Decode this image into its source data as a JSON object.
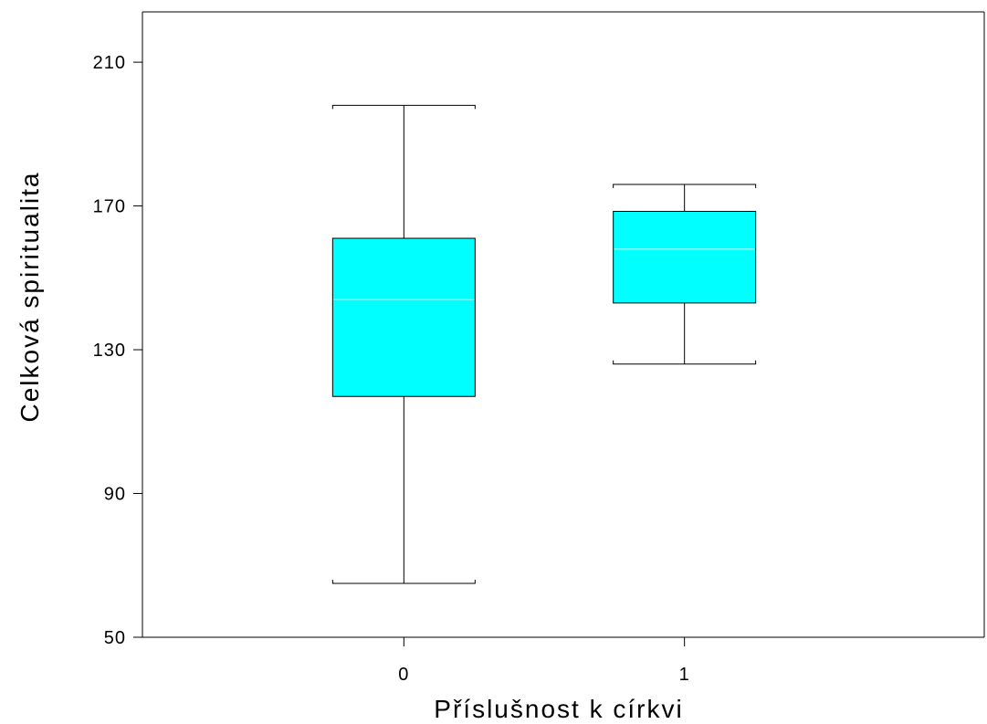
{
  "chart_data": {
    "type": "box",
    "xlabel": "Příslušnost k církvi",
    "ylabel": "Celková spiritualita",
    "ylim": [
      50,
      224
    ],
    "yticks": [
      50,
      90,
      130,
      170,
      210
    ],
    "categories": [
      "0",
      "1"
    ],
    "boxes": [
      {
        "category": "0",
        "whisker_low": 65,
        "q1": 117,
        "median": 144,
        "q3": 161,
        "whisker_high": 198
      },
      {
        "category": "1",
        "whisker_low": 126,
        "q1": 143,
        "median": 158,
        "q3": 168.5,
        "whisker_high": 176
      }
    ],
    "box_color": "#00ffff",
    "median_color": "#c8ffff",
    "grid": false
  }
}
